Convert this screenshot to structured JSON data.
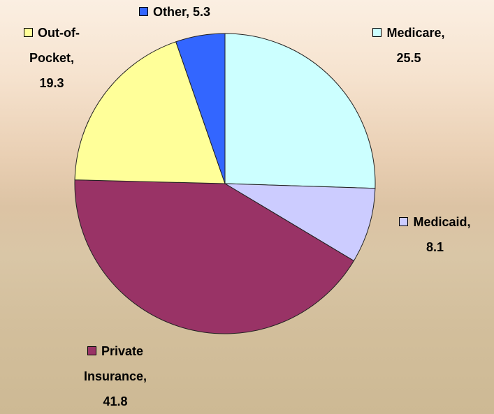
{
  "chart_data": {
    "type": "pie",
    "categories": [
      "Medicare",
      "Medicaid",
      "Private Insurance",
      "Out-of-Pocket",
      "Other"
    ],
    "values": [
      25.5,
      8.1,
      41.8,
      19.3,
      5.3
    ],
    "colors": [
      "#ccffff",
      "#ccccff",
      "#993366",
      "#ffff99",
      "#3366ff"
    ],
    "label_separator": ","
  }
}
